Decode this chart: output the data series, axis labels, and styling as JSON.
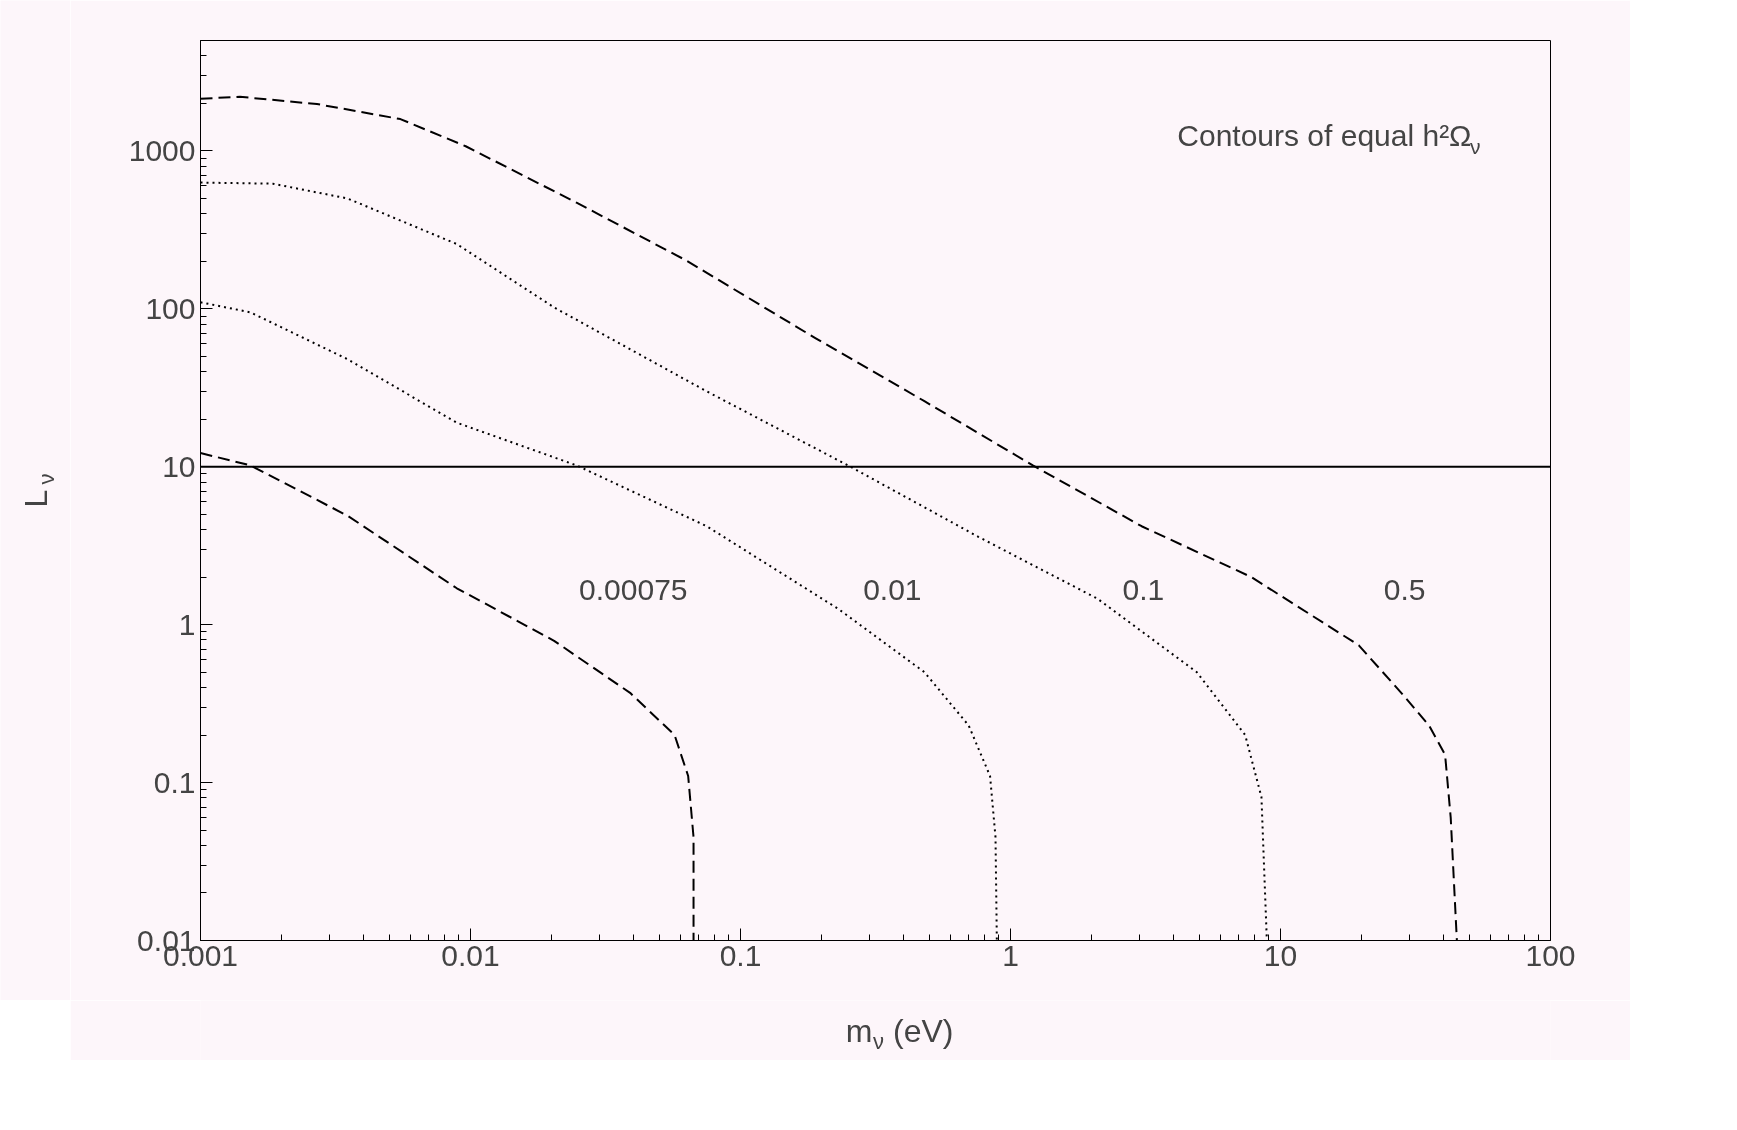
{
  "chart_data": {
    "type": "line",
    "xlabel": "m$_{ν}$ (eV)",
    "ylabel": "L$_{ν}$",
    "log": "xy",
    "grid": false,
    "xlim": [
      0.001,
      100
    ],
    "xticks": [
      0.001,
      0.01,
      0.1,
      1,
      10,
      100
    ],
    "ylim": [
      0.01,
      5000
    ],
    "yticks": [
      0.01,
      0.1,
      1,
      10,
      100,
      1000
    ],
    "annotations": [
      "Contours of equal h²Ω$_{ν}$"
    ],
    "ref_lines": [
      {
        "axis": "y",
        "value": 10,
        "color": "#000000",
        "line_style": "solid"
      }
    ],
    "series": [
      {
        "name": "0.00075",
        "color": "#000000",
        "line_style": "dashed",
        "x": [
          0.001,
          0.00153,
          0.0035,
          0.0089,
          0.0204,
          0.039,
          0.057,
          0.064,
          0.067,
          0.067
        ],
        "values": [
          12.2,
          10.2,
          4.9,
          1.7,
          0.79,
          0.37,
          0.2,
          0.11,
          0.045,
          0.01
        ]
      },
      {
        "name": "0.01",
        "color": "#000000",
        "line_style": "dotted",
        "x": [
          0.001,
          0.00153,
          0.0035,
          0.0089,
          0.0247,
          0.075,
          0.23,
          0.48,
          0.7,
          0.84,
          0.88,
          0.89
        ],
        "values": [
          110,
          95,
          48,
          19,
          10.2,
          4.2,
          1.26,
          0.5,
          0.23,
          0.11,
          0.045,
          0.01
        ]
      },
      {
        "name": "0.1",
        "color": "#000000",
        "line_style": "dotted",
        "x": [
          0.001,
          0.00185,
          0.0035,
          0.0089,
          0.0204,
          0.075,
          0.25,
          0.76,
          2.1,
          4.9,
          7.4,
          8.5,
          8.9
        ],
        "values": [
          630,
          620,
          500,
          257,
          102,
          30,
          10.2,
          3.6,
          1.46,
          0.5,
          0.2,
          0.081,
          0.01
        ]
      },
      {
        "name": "0.5",
        "color": "#000000",
        "line_style": "dashed",
        "x": [
          0.001,
          0.0014,
          0.0027,
          0.0055,
          0.0096,
          0.0247,
          0.0624,
          0.19,
          0.48,
          1.21,
          3.06,
          7.8,
          19.5,
          28,
          35.5,
          40.7,
          42.7,
          45
        ],
        "values": [
          2140,
          2200,
          1980,
          1590,
          1070,
          470,
          204,
          65,
          26,
          10.2,
          4.2,
          2.0,
          0.74,
          0.37,
          0.23,
          0.15,
          0.06,
          0.01
        ]
      }
    ]
  }
}
